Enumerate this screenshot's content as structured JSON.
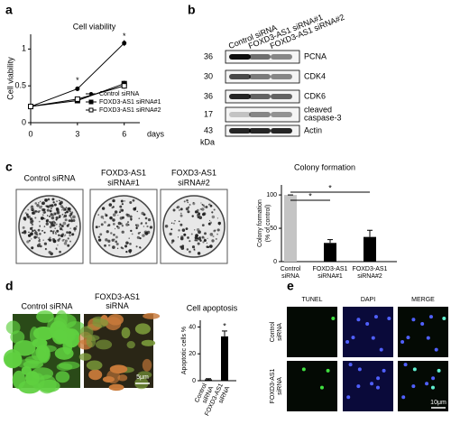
{
  "panels": [
    "a",
    "b",
    "c",
    "d",
    "e"
  ],
  "chart_data": [
    {
      "type": "line",
      "title": "Cell viability",
      "y_label": "Cell viability",
      "x_label": "days",
      "x": [
        0,
        3,
        6
      ],
      "xlim": [
        0,
        7
      ],
      "xticks": [
        0,
        3,
        6
      ],
      "ylim": [
        0,
        1.2
      ],
      "yticks": [
        0,
        0.5,
        1
      ],
      "series": [
        {
          "name": "Control siRNA",
          "color": "#000000",
          "marker": "circle",
          "values": [
            0.22,
            0.46,
            1.08
          ],
          "errors": [
            0.02,
            0.03,
            0.04
          ]
        },
        {
          "name": "FOXD3-AS1 siRNA#1",
          "color": "#000000",
          "marker": "square",
          "values": [
            0.22,
            0.3,
            0.53
          ],
          "errors": [
            0.02,
            0.03,
            0.04
          ]
        },
        {
          "name": "FOXD3-AS1 siRNA#2",
          "color": "#000000",
          "marker": "open-square",
          "values": [
            0.22,
            0.32,
            0.5
          ],
          "errors": [
            0.02,
            0.03,
            0.04
          ]
        }
      ],
      "annotations": [
        {
          "text": "*",
          "x": 3,
          "y": 0.57
        },
        {
          "text": "*",
          "x": 6,
          "y": 1.17
        }
      ]
    },
    {
      "type": "bar",
      "title": "Colony formation",
      "y_label": [
        "Colony formation",
        "(% of control)"
      ],
      "categories": [
        "Control siRNA",
        "FOXD3-AS1 siRNA#1",
        "FOXD3-AS1 siRNA#2"
      ],
      "values": [
        100,
        28,
        37
      ],
      "errors": [
        0,
        5,
        10
      ],
      "colors": [
        "#c4c4c4",
        "#000000",
        "#000000"
      ],
      "ylim": [
        0,
        115
      ],
      "yticks": [
        0,
        50,
        100
      ],
      "annotations": [
        {
          "text": "*",
          "from": 0,
          "to": 1
        },
        {
          "text": "*",
          "from": 0,
          "to": 2
        }
      ]
    },
    {
      "type": "bar",
      "title": "Cell apoptosis",
      "y_label": [
        "Apoptotic cells %"
      ],
      "categories": [
        "Control siRNA",
        "FOXD3-AS1 siRNA"
      ],
      "values": [
        1,
        33
      ],
      "errors": [
        0.5,
        4
      ],
      "colors": [
        "#000000",
        "#000000"
      ],
      "ylim": [
        0,
        45
      ],
      "yticks": [
        0,
        20,
        40
      ],
      "annotations": [
        {
          "text": "*",
          "from": 1,
          "to": 1
        }
      ]
    }
  ],
  "blot": {
    "lanes": [
      "Control siRNA",
      "FOXD3-AS1 siRNA#1",
      "FOXD3-AS1 siRNA#2"
    ],
    "rows": [
      {
        "marker": 36,
        "label": "PCNA"
      },
      {
        "marker": 30,
        "label": "CDK4"
      },
      {
        "marker": 36,
        "label": "CDK6"
      },
      {
        "marker": 17,
        "label": "cleaved caspase-3"
      },
      {
        "marker": 43,
        "label": "Actin"
      }
    ],
    "unit": "kDa"
  },
  "dishes": {
    "labels": [
      "Control siRNA",
      "FOXD3-AS1 siRNA#1",
      "FOXD3-AS1 siRNA#2"
    ]
  },
  "apoptosis_images": {
    "labels": [
      "Control siRNA",
      "FOXD3-AS1 siRNA"
    ],
    "scale": "5μm"
  },
  "tunel": {
    "columns": [
      "TUNEL",
      "DAPI",
      "MERGE"
    ],
    "rows": [
      "Control siRNA",
      "FOXD3-AS1 siRNA"
    ],
    "scale": "10μm"
  }
}
